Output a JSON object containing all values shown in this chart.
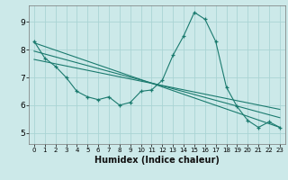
{
  "title": "",
  "xlabel": "Humidex (Indice chaleur)",
  "ylabel": "",
  "background_color": "#cce9e9",
  "grid_color": "#aad4d4",
  "line_color": "#1a7a6e",
  "xlim": [
    -0.5,
    23.5
  ],
  "ylim": [
    4.6,
    9.6
  ],
  "xticks": [
    0,
    1,
    2,
    3,
    4,
    5,
    6,
    7,
    8,
    9,
    10,
    11,
    12,
    13,
    14,
    15,
    16,
    17,
    18,
    19,
    20,
    21,
    22,
    23
  ],
  "yticks": [
    5,
    6,
    7,
    8,
    9
  ],
  "series1_x": [
    0,
    1,
    2,
    3,
    4,
    5,
    6,
    7,
    8,
    9,
    10,
    11,
    12,
    13,
    14,
    15,
    16,
    17,
    18,
    19,
    20,
    21,
    22,
    23
  ],
  "series1_y": [
    8.3,
    7.7,
    7.4,
    7.0,
    6.5,
    6.3,
    6.2,
    6.3,
    6.0,
    6.1,
    6.5,
    6.55,
    6.9,
    7.8,
    8.5,
    9.35,
    9.1,
    8.3,
    6.65,
    5.95,
    5.45,
    5.2,
    5.4,
    5.2
  ],
  "series2_x": [
    0,
    23
  ],
  "series2_y": [
    8.25,
    5.2
  ],
  "series3_x": [
    0,
    23
  ],
  "series3_y": [
    7.95,
    5.55
  ],
  "series4_x": [
    0,
    23
  ],
  "series4_y": [
    7.65,
    5.85
  ]
}
